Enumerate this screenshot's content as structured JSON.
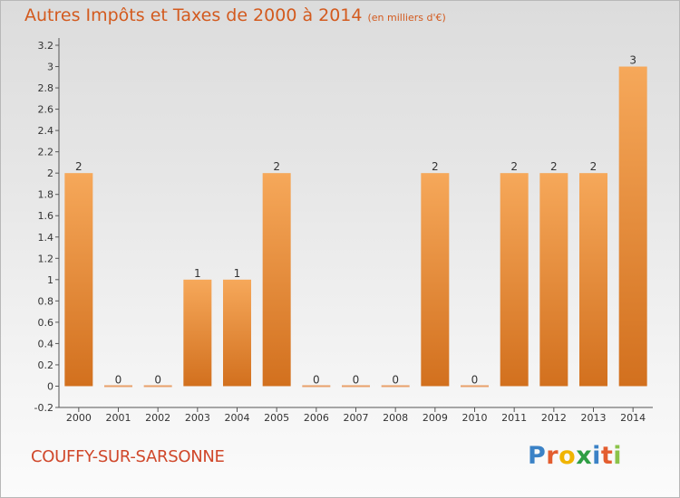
{
  "header": {
    "title": "Autres Impôts et Taxes de 2000 à 2014",
    "subtitle": "(en milliers d'€)"
  },
  "footer": {
    "commune": "COUFFY-SUR-SARSONNE",
    "logo_letters": [
      "P",
      "r",
      "o",
      "x",
      "i",
      "t",
      "i"
    ],
    "logo_colors": [
      "#3b82c6",
      "#e35d2f",
      "#f0b400",
      "#2f9e44",
      "#3b82c6",
      "#e35d2f",
      "#8bc34a"
    ]
  },
  "colors": {
    "bar_light": "#f6a85a",
    "bar_dark": "#d2701e",
    "zero_bar": "#e8a06a",
    "title": "#d35a1e"
  },
  "chart_data": {
    "type": "bar",
    "categories": [
      "2000",
      "2001",
      "2002",
      "2003",
      "2004",
      "2005",
      "2006",
      "2007",
      "2008",
      "2009",
      "2010",
      "2011",
      "2012",
      "2013",
      "2014"
    ],
    "values": [
      2,
      0,
      0,
      1,
      1,
      2,
      0,
      0,
      0,
      2,
      0,
      2,
      2,
      2,
      3
    ],
    "data_labels": [
      "2",
      "0",
      "0",
      "1",
      "1",
      "2",
      "0",
      "0",
      "0",
      "2",
      "0",
      "2",
      "2",
      "2",
      "3"
    ],
    "y_ticks": [
      -0.2,
      0,
      0.2,
      0.4,
      0.6,
      0.8,
      1,
      1.2,
      1.4,
      1.6,
      1.8,
      2,
      2.2,
      2.4,
      2.6,
      2.8,
      3,
      3.2
    ],
    "y_tick_labels": [
      "-0.2",
      "0",
      "0.2",
      "0.4",
      "0.6",
      "0.8",
      "1",
      "1.2",
      "1.4",
      "1.6",
      "1.8",
      "2",
      "2.2",
      "2.4",
      "2.6",
      "2.8",
      "3",
      "3.2"
    ],
    "ylim": [
      -0.2,
      3.2
    ],
    "grid": false
  }
}
